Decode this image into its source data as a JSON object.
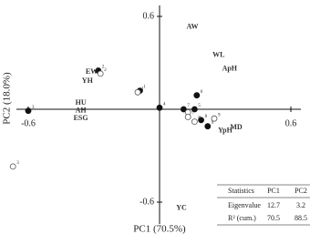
{
  "chart_data": {
    "type": "scatter",
    "x_label": "PC1 (70.5%)",
    "y_label": "PC2 (18.0%)",
    "xlim": [
      -0.72,
      0.68
    ],
    "ylim": [
      -0.8,
      0.7
    ],
    "xticks": [
      -0.6,
      0.6
    ],
    "yticks": [
      0.6,
      -0.6
    ],
    "series": [
      {
        "style": "filled",
        "color": "#111",
        "x": [
          -0.6,
          -0.28,
          -0.09,
          0.0,
          0.11,
          0.16,
          0.17,
          0.19,
          0.22
        ],
        "values": [
          -0.01,
          0.25,
          0.12,
          0.01,
          0.0,
          0.0,
          0.09,
          -0.07,
          -0.11
        ],
        "labels": [
          "3",
          "2",
          "1",
          "4",
          "7",
          "5",
          "6",
          "8",
          "9"
        ]
      },
      {
        "style": "open",
        "color": "#555",
        "x": [
          -0.67,
          -0.27,
          -0.1,
          0.13,
          0.16,
          0.25,
          0.13
        ],
        "values": [
          -0.37,
          0.23,
          0.11,
          -0.02,
          -0.08,
          -0.06,
          -0.05
        ],
        "labels": [
          "3",
          "2",
          "1",
          "4",
          "8",
          "9",
          "7"
        ]
      }
    ],
    "variables": [
      {
        "text": "AW",
        "x": 0.15,
        "y": 0.53
      },
      {
        "text": "WL",
        "x": 0.27,
        "y": 0.35
      },
      {
        "text": "ApH",
        "x": 0.32,
        "y": 0.26
      },
      {
        "text": "EW",
        "x": -0.31,
        "y": 0.24
      },
      {
        "text": "YH",
        "x": -0.33,
        "y": 0.18
      },
      {
        "text": "HU",
        "x": -0.36,
        "y": 0.04
      },
      {
        "text": "AH",
        "x": -0.36,
        "y": -0.01
      },
      {
        "text": "ESG",
        "x": -0.36,
        "y": -0.06
      },
      {
        "text": "YpH",
        "x": 0.3,
        "y": -0.14
      },
      {
        "text": "MD",
        "x": 0.35,
        "y": -0.12
      },
      {
        "text": "YC",
        "x": 0.1,
        "y": -0.64
      }
    ],
    "table": {
      "header": [
        "Statistics",
        "PC1",
        "PC2"
      ],
      "rows": [
        [
          "Eigenvalue",
          12.7,
          3.2
        ],
        [
          "R² (cum.)",
          70.5,
          88.5
        ]
      ]
    }
  }
}
